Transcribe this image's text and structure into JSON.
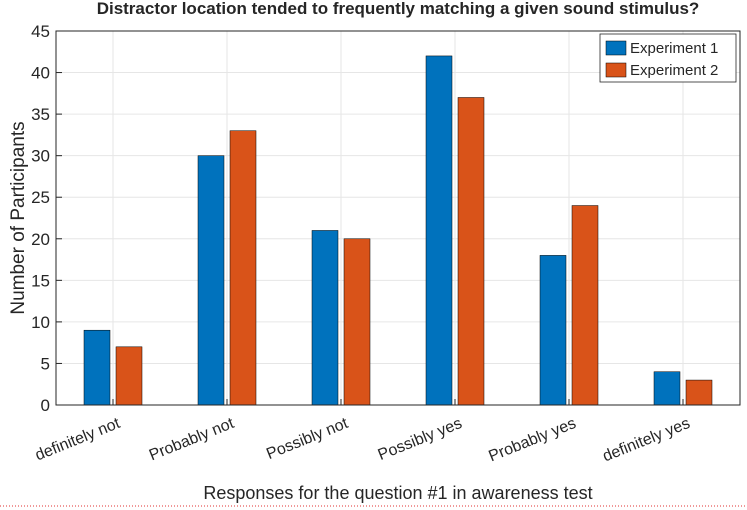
{
  "chart_data": {
    "type": "bar",
    "title": "Distractor location tended to frequently matching a given sound stimulus?",
    "x_label": "Responses for the question #1 in awareness test",
    "y_label": "Number of Participants",
    "categories": [
      "definitely not",
      "Probably not",
      "Possibly not",
      "Possibly yes",
      "Probably yes",
      "definitely yes"
    ],
    "series": [
      {
        "name": "Experiment 1",
        "color": "#0072bd",
        "values": [
          9,
          30,
          21,
          42,
          18,
          4
        ]
      },
      {
        "name": "Experiment 2",
        "color": "#d95319",
        "values": [
          7,
          33,
          20,
          37,
          24,
          3
        ]
      }
    ],
    "ylim": [
      0,
      45
    ],
    "yticks": [
      0,
      5,
      10,
      15,
      20,
      25,
      30,
      35,
      40,
      45
    ],
    "grid": true,
    "legend": "upper right"
  }
}
